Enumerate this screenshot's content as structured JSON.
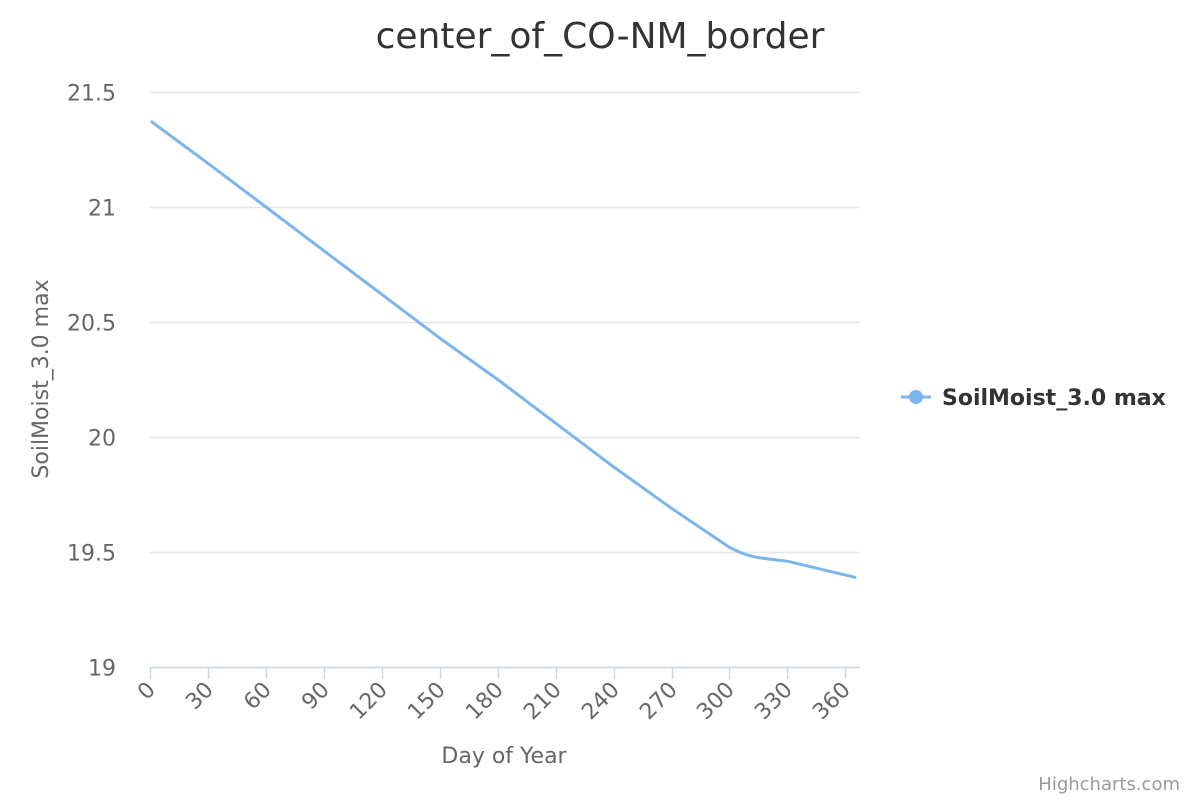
{
  "chart_data": {
    "type": "line",
    "title": "center_of_CO-NM_border",
    "xlabel": "Day of Year",
    "ylabel": "SoilMoist_3.0 max",
    "xlim": [
      0,
      365
    ],
    "ylim": [
      19,
      21.5
    ],
    "x_ticks": [
      "0",
      "30",
      "60",
      "90",
      "120",
      "150",
      "180",
      "210",
      "240",
      "270",
      "300",
      "330",
      "360"
    ],
    "y_ticks": [
      "19",
      "19.5",
      "20",
      "20.5",
      "21",
      "21.5"
    ],
    "grid": true,
    "legend_position": "right",
    "series": [
      {
        "name": "SoilMoist_3.0 max",
        "color": "#7cb5ec",
        "x": [
          1,
          30,
          60,
          90,
          120,
          150,
          180,
          210,
          240,
          270,
          300,
          305,
          310,
          315,
          320,
          330,
          340,
          350,
          365
        ],
        "values": [
          21.37,
          21.19,
          21.0,
          20.81,
          20.62,
          20.43,
          20.25,
          20.06,
          19.87,
          19.69,
          19.52,
          19.5,
          19.485,
          19.475,
          19.47,
          19.46,
          19.44,
          19.42,
          19.39
        ]
      }
    ]
  },
  "credits": "Highcharts.com"
}
